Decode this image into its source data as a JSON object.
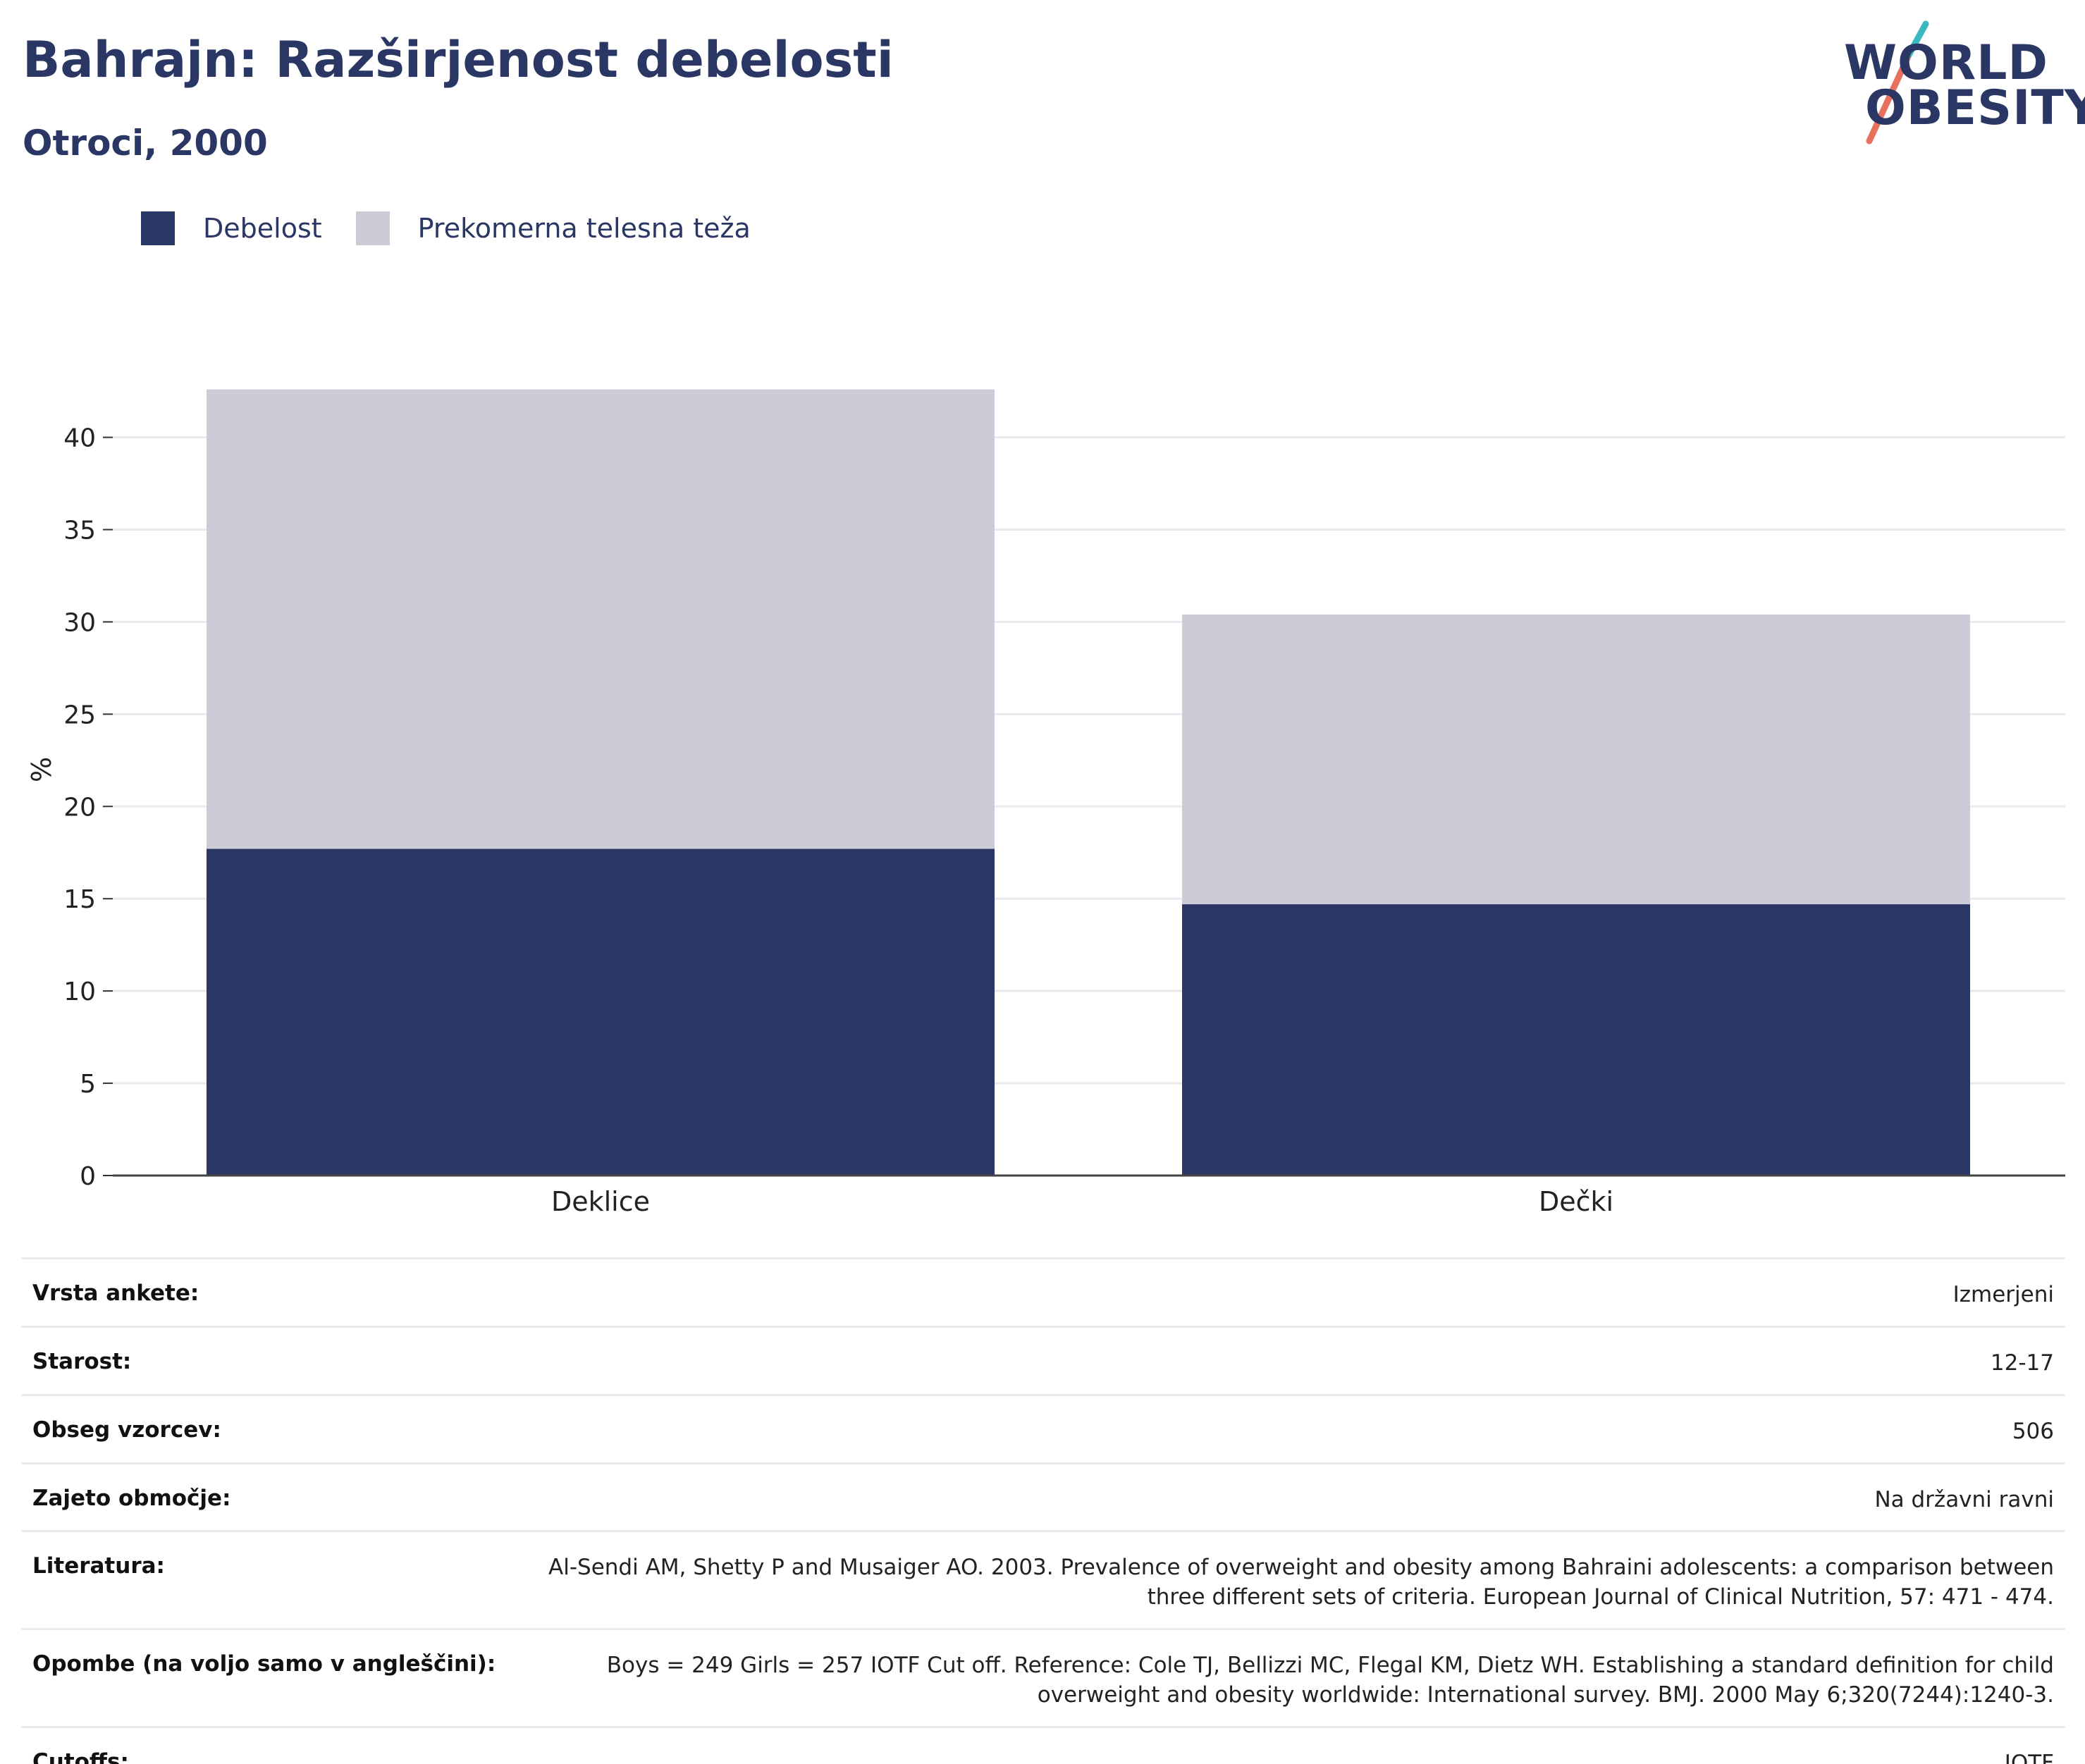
{
  "header": {
    "title": "Bahrajn: Razširjenost debelosti",
    "subtitle": "Otroci, 2000"
  },
  "logo": {
    "line1": "WORLD",
    "line2": "OBESITY",
    "accent_teal": "#3bb8c0",
    "accent_coral": "#e8705f"
  },
  "legend": {
    "items": [
      {
        "label": "Debelost",
        "color": "#2a3663"
      },
      {
        "label": "Prekomerna telesna teža",
        "color": "#cbccd8"
      }
    ]
  },
  "chart_data": {
    "type": "bar",
    "stacked": true,
    "categories": [
      "Deklice",
      "Dečki"
    ],
    "series": [
      {
        "name": "Debelost",
        "values": [
          17.7,
          14.7
        ],
        "color": "#2a3663"
      },
      {
        "name": "Prekomerna telesna teža",
        "values": [
          24.9,
          15.7
        ],
        "color": "#cbccd8"
      }
    ],
    "title": "Bahrajn: Razširjenost debelosti",
    "subtitle": "Otroci, 2000",
    "xlabel": "",
    "ylabel": "%",
    "ylim": [
      0,
      43
    ],
    "yticks": [
      0,
      5,
      10,
      15,
      20,
      25,
      30,
      35,
      40
    ],
    "grid": true,
    "legend_position": "top-left"
  },
  "meta": {
    "rows": [
      {
        "key": "Vrsta ankete:",
        "value": "Izmerjeni"
      },
      {
        "key": "Starost:",
        "value": "12-17"
      },
      {
        "key": "Obseg vzorcev:",
        "value": "506"
      },
      {
        "key": "Zajeto območje:",
        "value": "Na državni ravni"
      },
      {
        "key": "Literatura:",
        "value": "Al-Sendi AM, Shetty P and Musaiger AO. 2003. Prevalence of overweight and obesity among Bahraini adolescents: a comparison between three different sets of criteria. European Journal of Clinical Nutrition, 57: 471 - 474."
      },
      {
        "key": "Opombe (na voljo samo v angleščini):",
        "value": "Boys = 249 Girls = 257 IOTF Cut off. Reference: Cole TJ, Bellizzi MC, Flegal KM, Dietz WH. Establishing a standard definition for child overweight and obesity worldwide: International survey. BMJ. 2000 May 6;320(7244):1240-3."
      },
      {
        "key": "Cutoffs:",
        "value": "IOTF"
      }
    ]
  }
}
